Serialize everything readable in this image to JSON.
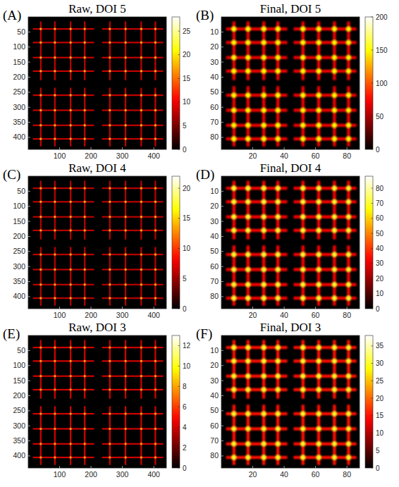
{
  "chart_data": [
    {
      "type": "heatmap",
      "panel_label": "(A)",
      "title": "Raw, DOI 5",
      "xlim": [
        0,
        440
      ],
      "ylim": [
        440,
        0
      ],
      "xticks": [
        100,
        200,
        300,
        400
      ],
      "yticks": [
        50,
        100,
        150,
        200,
        250,
        300,
        350,
        400
      ],
      "line_value": 8,
      "cross_value": 18,
      "colorbar": {
        "range": [
          0,
          28
        ],
        "ticks": [
          0,
          5,
          10,
          15,
          20,
          25
        ]
      },
      "quadrants": [
        {
          "x_range": [
            15,
            210
          ],
          "y_range": [
            15,
            210
          ],
          "x_lines": [
            40,
            85,
            135,
            180
          ],
          "y_lines": [
            40,
            85,
            135,
            180
          ]
        },
        {
          "x_range": [
            235,
            430
          ],
          "y_range": [
            15,
            210
          ],
          "x_lines": [
            260,
            310,
            360,
            405
          ],
          "y_lines": [
            40,
            85,
            135,
            180
          ]
        },
        {
          "x_range": [
            15,
            210
          ],
          "y_range": [
            235,
            430
          ],
          "x_lines": [
            40,
            85,
            135,
            180
          ],
          "y_lines": [
            260,
            310,
            360,
            405
          ]
        },
        {
          "x_range": [
            235,
            430
          ],
          "y_range": [
            235,
            430
          ],
          "x_lines": [
            260,
            310,
            360,
            405
          ],
          "y_lines": [
            260,
            310,
            360,
            405
          ]
        }
      ]
    },
    {
      "type": "heatmap",
      "panel_label": "(B)",
      "title": "Final, DOI 5",
      "xlim": [
        0,
        88
      ],
      "ylim": [
        88,
        0
      ],
      "xticks": [
        20,
        40,
        60,
        80
      ],
      "yticks": [
        10,
        20,
        30,
        40,
        50,
        60,
        70,
        80
      ],
      "line_value": 70,
      "cross_value": 150,
      "colorbar": {
        "range": [
          0,
          200
        ],
        "ticks": [
          0,
          50,
          100,
          150,
          200
        ]
      },
      "quadrants": [
        {
          "x_range": [
            3,
            42
          ],
          "y_range": [
            3,
            42
          ],
          "x_lines": [
            8,
            17,
            27,
            36
          ],
          "y_lines": [
            8,
            17,
            27,
            36
          ]
        },
        {
          "x_range": [
            46,
            86
          ],
          "y_range": [
            3,
            42
          ],
          "x_lines": [
            52,
            62,
            72,
            81
          ],
          "y_lines": [
            8,
            17,
            27,
            36
          ]
        },
        {
          "x_range": [
            3,
            42
          ],
          "y_range": [
            46,
            86
          ],
          "x_lines": [
            8,
            17,
            27,
            36
          ],
          "y_lines": [
            52,
            62,
            72,
            81
          ]
        },
        {
          "x_range": [
            46,
            86
          ],
          "y_range": [
            46,
            86
          ],
          "x_lines": [
            52,
            62,
            72,
            81
          ],
          "y_lines": [
            52,
            62,
            72,
            81
          ]
        }
      ]
    },
    {
      "type": "heatmap",
      "panel_label": "(C)",
      "title": "Raw, DOI 4",
      "xlim": [
        0,
        440
      ],
      "ylim": [
        440,
        0
      ],
      "xticks": [
        100,
        200,
        300,
        400
      ],
      "yticks": [
        50,
        100,
        150,
        200,
        250,
        300,
        350,
        400
      ],
      "line_value": 6,
      "cross_value": 14,
      "colorbar": {
        "range": [
          0,
          22
        ],
        "ticks": [
          0,
          5,
          10,
          15,
          20
        ]
      },
      "quadrants": [
        {
          "x_range": [
            15,
            210
          ],
          "y_range": [
            15,
            210
          ],
          "x_lines": [
            40,
            85,
            135,
            180
          ],
          "y_lines": [
            40,
            85,
            135,
            180
          ]
        },
        {
          "x_range": [
            235,
            430
          ],
          "y_range": [
            15,
            210
          ],
          "x_lines": [
            260,
            310,
            360,
            405
          ],
          "y_lines": [
            40,
            85,
            135,
            180
          ]
        },
        {
          "x_range": [
            15,
            210
          ],
          "y_range": [
            235,
            430
          ],
          "x_lines": [
            40,
            85,
            135,
            180
          ],
          "y_lines": [
            260,
            310,
            360,
            405
          ]
        },
        {
          "x_range": [
            235,
            430
          ],
          "y_range": [
            235,
            430
          ],
          "x_lines": [
            260,
            310,
            360,
            405
          ],
          "y_lines": [
            260,
            310,
            360,
            405
          ]
        }
      ]
    },
    {
      "type": "heatmap",
      "panel_label": "(D)",
      "title": "Final, DOI 4",
      "xlim": [
        0,
        88
      ],
      "ylim": [
        88,
        0
      ],
      "xticks": [
        20,
        40,
        60,
        80
      ],
      "yticks": [
        10,
        20,
        30,
        40,
        50,
        60,
        70,
        80
      ],
      "line_value": 32,
      "cross_value": 70,
      "colorbar": {
        "range": [
          0,
          88
        ],
        "ticks": [
          0,
          10,
          20,
          30,
          40,
          50,
          60,
          70,
          80
        ]
      },
      "quadrants": [
        {
          "x_range": [
            3,
            42
          ],
          "y_range": [
            3,
            42
          ],
          "x_lines": [
            8,
            17,
            27,
            36
          ],
          "y_lines": [
            8,
            17,
            27,
            36
          ]
        },
        {
          "x_range": [
            46,
            86
          ],
          "y_range": [
            3,
            42
          ],
          "x_lines": [
            52,
            62,
            72,
            81
          ],
          "y_lines": [
            8,
            17,
            27,
            36
          ]
        },
        {
          "x_range": [
            3,
            42
          ],
          "y_range": [
            46,
            86
          ],
          "x_lines": [
            8,
            17,
            27,
            36
          ],
          "y_lines": [
            52,
            62,
            72,
            81
          ]
        },
        {
          "x_range": [
            46,
            86
          ],
          "y_range": [
            46,
            86
          ],
          "x_lines": [
            52,
            62,
            72,
            81
          ],
          "y_lines": [
            52,
            62,
            72,
            81
          ]
        }
      ]
    },
    {
      "type": "heatmap",
      "panel_label": "(E)",
      "title": "Raw, DOI 3",
      "xlim": [
        0,
        440
      ],
      "ylim": [
        440,
        0
      ],
      "xticks": [
        100,
        200,
        300,
        400
      ],
      "yticks": [
        50,
        100,
        150,
        200,
        250,
        300,
        350,
        400
      ],
      "line_value": 4,
      "cross_value": 8,
      "colorbar": {
        "range": [
          0,
          13
        ],
        "ticks": [
          0,
          2,
          4,
          6,
          8,
          10,
          12
        ]
      },
      "quadrants": [
        {
          "x_range": [
            15,
            210
          ],
          "y_range": [
            15,
            210
          ],
          "x_lines": [
            40,
            85,
            135,
            180
          ],
          "y_lines": [
            40,
            85,
            135,
            180
          ]
        },
        {
          "x_range": [
            235,
            430
          ],
          "y_range": [
            15,
            210
          ],
          "x_lines": [
            260,
            310,
            360,
            405
          ],
          "y_lines": [
            40,
            85,
            135,
            180
          ]
        },
        {
          "x_range": [
            15,
            210
          ],
          "y_range": [
            235,
            430
          ],
          "x_lines": [
            40,
            85,
            135,
            180
          ],
          "y_lines": [
            260,
            310,
            360,
            405
          ]
        },
        {
          "x_range": [
            235,
            430
          ],
          "y_range": [
            235,
            430
          ],
          "x_lines": [
            260,
            310,
            360,
            405
          ],
          "y_lines": [
            260,
            310,
            360,
            405
          ]
        }
      ]
    },
    {
      "type": "heatmap",
      "panel_label": "(F)",
      "title": "Final, DOI 3",
      "xlim": [
        0,
        88
      ],
      "ylim": [
        88,
        0
      ],
      "xticks": [
        20,
        40,
        60,
        80
      ],
      "yticks": [
        10,
        20,
        30,
        40,
        50,
        60,
        70,
        80
      ],
      "line_value": 15,
      "cross_value": 30,
      "colorbar": {
        "range": [
          0,
          38
        ],
        "ticks": [
          0,
          5,
          10,
          15,
          20,
          25,
          30,
          35
        ]
      },
      "quadrants": [
        {
          "x_range": [
            3,
            42
          ],
          "y_range": [
            3,
            42
          ],
          "x_lines": [
            8,
            17,
            27,
            36
          ],
          "y_lines": [
            8,
            17,
            27,
            36
          ]
        },
        {
          "x_range": [
            46,
            86
          ],
          "y_range": [
            3,
            42
          ],
          "x_lines": [
            52,
            62,
            72,
            81
          ],
          "y_lines": [
            8,
            17,
            27,
            36
          ]
        },
        {
          "x_range": [
            3,
            42
          ],
          "y_range": [
            46,
            86
          ],
          "x_lines": [
            8,
            17,
            27,
            36
          ],
          "y_lines": [
            52,
            62,
            72,
            81
          ]
        },
        {
          "x_range": [
            46,
            86
          ],
          "y_range": [
            46,
            86
          ],
          "x_lines": [
            52,
            62,
            72,
            81
          ],
          "y_lines": [
            52,
            62,
            72,
            81
          ]
        }
      ]
    }
  ]
}
